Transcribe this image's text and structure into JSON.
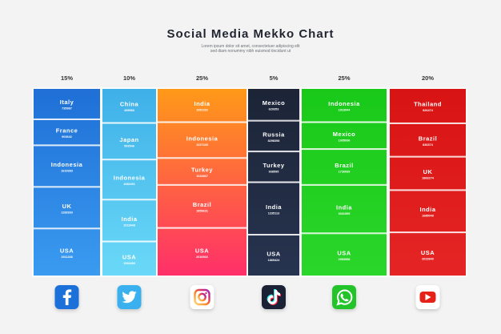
{
  "title": "Social Media Mekko Chart",
  "subtitle_lines": [
    "Lorem ipsum dolor sit amet, consectetuer adipiscing elit",
    "sed diam nonummy nibh euismod tincidunt ut"
  ],
  "colors": {
    "facebook": "#1f6fd6",
    "twitter": "#3fb0e8",
    "instagram": "#f5703a",
    "tiktok": "#1c2436",
    "whatsapp": "#1fcf1f",
    "youtube": "#dd1a1a"
  },
  "chart_data": {
    "type": "mekko",
    "title": "Social Media Mekko Chart",
    "xlabel": "",
    "ylabel": "",
    "legend": "icons-bottom",
    "series": [
      {
        "icon": "facebook-icon",
        "share": "15%",
        "share_value": 15,
        "gradient": [
          "#1f6fd6",
          "#3a9bf0"
        ],
        "text_color": "#ffffff",
        "segments": [
          {
            "country": "Italy",
            "value": "735987",
            "weight": 0.9
          },
          {
            "country": "France",
            "value": "903642",
            "weight": 0.75
          },
          {
            "country": "Indonesia",
            "value": "1619383",
            "weight": 1.2
          },
          {
            "country": "UK",
            "value": "1283393",
            "weight": 1.2
          },
          {
            "country": "USA",
            "value": "1911238",
            "weight": 1.38
          }
        ]
      },
      {
        "icon": "twitter-icon",
        "share": "10%",
        "share_value": 10,
        "gradient": [
          "#3fb0e8",
          "#6ad9f8"
        ],
        "text_color": "#ffffff",
        "segments": [
          {
            "country": "China",
            "value": "495983",
            "weight": 1.0
          },
          {
            "country": "Japan",
            "value": "593546",
            "weight": 1.05
          },
          {
            "country": "Indonesia",
            "value": "1082491",
            "weight": 1.15
          },
          {
            "country": "India",
            "value": "1013948",
            "weight": 1.2
          },
          {
            "country": "USA",
            "value": "1593459",
            "weight": 1.0
          }
        ]
      },
      {
        "icon": "instagram-icon",
        "share": "25%",
        "share_value": 25,
        "gradient": [
          "#ff9a18",
          "#ff2f6a"
        ],
        "text_color": "#ffffff",
        "segments": [
          {
            "country": "India",
            "value": "1081332",
            "weight": 0.95
          },
          {
            "country": "Indonesia",
            "value": "1027445",
            "weight": 1.0
          },
          {
            "country": "Turkey",
            "value": "1022867",
            "weight": 0.75
          },
          {
            "country": "Brazil",
            "value": "1859631",
            "weight": 1.2
          },
          {
            "country": "USA",
            "value": "2016902",
            "weight": 1.35
          }
        ]
      },
      {
        "icon": "tiktok-icon",
        "share": "5%",
        "share_value": 5,
        "gradient": [
          "#1c2436",
          "#273450"
        ],
        "text_color": "#ffffff",
        "segments": [
          {
            "country": "Mexico",
            "value": "629353",
            "weight": 0.9
          },
          {
            "country": "Russia",
            "value": "8298398",
            "weight": 0.85
          },
          {
            "country": "Turkey",
            "value": "938595",
            "weight": 0.85
          },
          {
            "country": "India",
            "value": "1235113",
            "weight": 1.45
          },
          {
            "country": "USA",
            "value": "1869424",
            "weight": 1.15
          }
        ]
      },
      {
        "icon": "whatsapp-icon",
        "share": "25%",
        "share_value": 25,
        "gradient": [
          "#19c919",
          "#2ad62a"
        ],
        "text_color": "#ffffff",
        "segments": [
          {
            "country": "Indonesia",
            "value": "1913944",
            "weight": 0.95
          },
          {
            "country": "Mexico",
            "value": "1935936",
            "weight": 0.75
          },
          {
            "country": "Brazil",
            "value": "1726939",
            "weight": 1.0
          },
          {
            "country": "India",
            "value": "3031595",
            "weight": 1.35
          },
          {
            "country": "USA",
            "value": "2953958",
            "weight": 1.2
          }
        ]
      },
      {
        "icon": "youtube-icon",
        "share": "20%",
        "share_value": 20,
        "gradient": [
          "#d81313",
          "#e52525"
        ],
        "text_color": "#ffffff",
        "segments": [
          {
            "country": "Thailand",
            "value": "926474",
            "weight": 1.0
          },
          {
            "country": "Brazil",
            "value": "836374",
            "weight": 0.95
          },
          {
            "country": "UK",
            "value": "1863274",
            "weight": 0.95
          },
          {
            "country": "India",
            "value": "1685049",
            "weight": 1.2
          },
          {
            "country": "USA",
            "value": "2023940",
            "weight": 1.25
          }
        ]
      }
    ]
  }
}
